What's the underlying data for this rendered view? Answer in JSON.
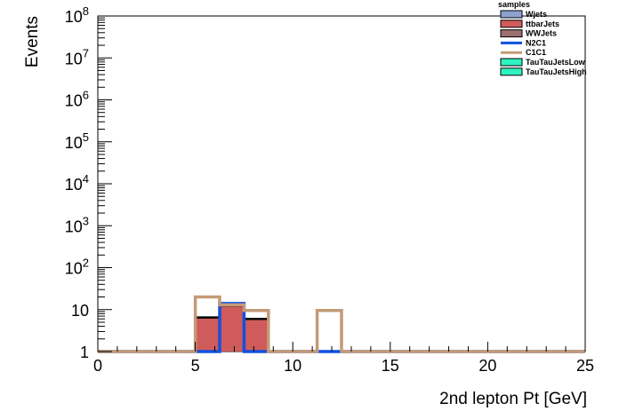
{
  "chart_data": {
    "type": "bar",
    "subtype": "stacked-histogram-log",
    "xlabel": "2nd lepton Pt [GeV]",
    "ylabel": "Events",
    "xlim": [
      0,
      25
    ],
    "ylim": [
      1,
      100000000
    ],
    "yscale": "log",
    "x_ticks": [
      "0",
      "5",
      "10",
      "15",
      "20",
      "25"
    ],
    "y_ticks": [
      {
        "value": 1,
        "base": "1",
        "exp": ""
      },
      {
        "value": 10,
        "base": "10",
        "exp": ""
      },
      {
        "value": 100,
        "base": "10",
        "exp": "2"
      },
      {
        "value": 1000,
        "base": "10",
        "exp": "3"
      },
      {
        "value": 10000,
        "base": "10",
        "exp": "4"
      },
      {
        "value": 100000,
        "base": "10",
        "exp": "5"
      },
      {
        "value": 1000000,
        "base": "10",
        "exp": "6"
      },
      {
        "value": 10000000,
        "base": "10",
        "exp": "7"
      },
      {
        "value": 100000000,
        "base": "10",
        "exp": "8"
      }
    ],
    "bin_edges": [
      0,
      1.25,
      2.5,
      3.75,
      5,
      6.25,
      7.5,
      8.75,
      10,
      11.25,
      12.5,
      13.75,
      15,
      16.25,
      17.5,
      18.75,
      20,
      21.25,
      22.5,
      23.75,
      25
    ],
    "legend": {
      "title": "samples",
      "placement": "top-right",
      "entries": [
        {
          "label": "Wjets",
          "kind": "fill",
          "fill": "#8ea2cf",
          "stroke": "#000000"
        },
        {
          "label": "ttbarJets",
          "kind": "fill",
          "fill": "#cf5b5b",
          "stroke": "#000000"
        },
        {
          "label": "WWJets",
          "kind": "fill",
          "fill": "#9b6e70",
          "stroke": "#000000"
        },
        {
          "label": "N2C1",
          "kind": "line",
          "stroke": "#1150e0"
        },
        {
          "label": "C1C1",
          "kind": "line",
          "stroke": "#c49a78"
        },
        {
          "label": "TauTauJetsLow",
          "kind": "fill",
          "fill": "#2ef5c0",
          "stroke": "#000000"
        },
        {
          "label": "TauTauJetsHigh",
          "kind": "fill",
          "fill": "#2ef5c0",
          "stroke": "#000000"
        }
      ]
    },
    "stacked_series": [
      {
        "name": "ttbarJets",
        "fill": "#cf5b5b",
        "values": [
          0,
          0,
          0,
          0,
          6.5,
          12.5,
          6.0,
          0,
          0,
          0,
          0,
          0,
          0,
          0,
          0,
          0,
          0,
          0,
          0,
          0
        ]
      }
    ],
    "line_series": [
      {
        "name": "N2C1",
        "stroke": "#1150e0",
        "values": [
          1,
          1,
          1,
          1,
          1,
          14,
          1,
          1,
          1,
          1,
          1,
          1,
          1,
          1,
          1,
          1,
          1,
          1,
          1,
          1
        ]
      },
      {
        "name": "C1C1",
        "stroke": "#c49a78",
        "values": [
          1,
          1,
          1,
          1,
          20,
          13,
          9.5,
          1,
          1,
          9.5,
          1,
          1,
          1,
          1,
          1,
          1,
          1,
          1,
          1,
          1
        ]
      }
    ]
  }
}
